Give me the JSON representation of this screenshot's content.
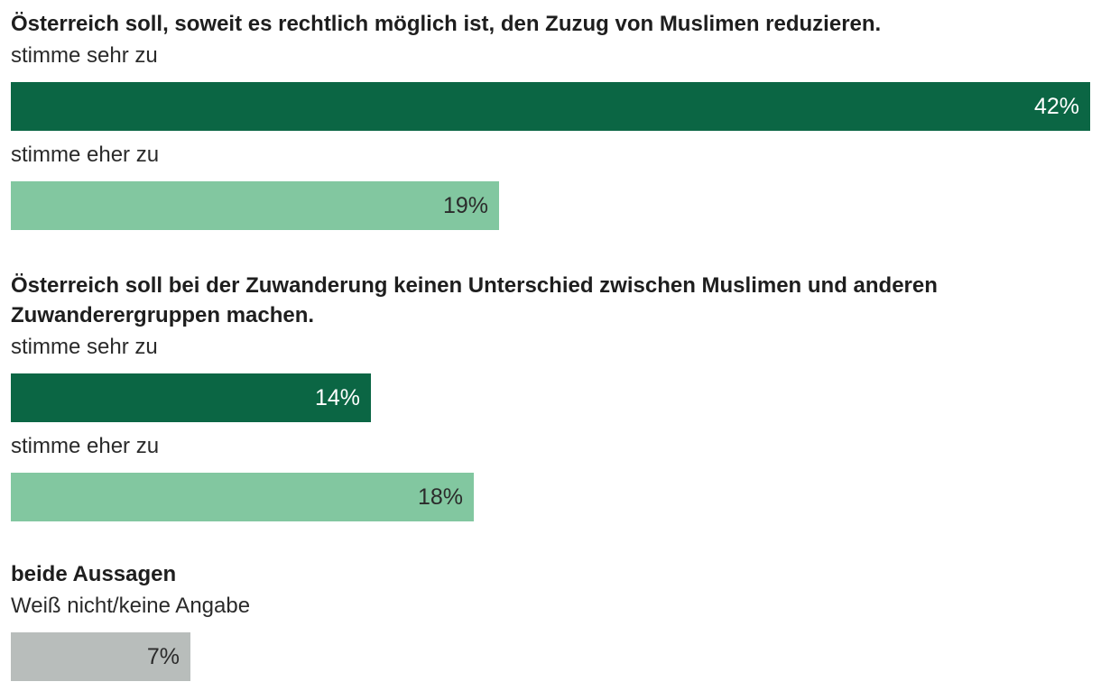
{
  "colors": {
    "stimme sehr zu": "#0b6644",
    "stimme eher zu": "#82c7a0",
    "Weiß nicht/keine Angabe": "#b8bdbb"
  },
  "chart_data": {
    "type": "bar",
    "orientation": "horizontal",
    "xlim": [
      0,
      42
    ],
    "groups": [
      {
        "title": "Österreich soll, soweit es rechtlich möglich ist, den Zuzug von Muslimen reduzieren.",
        "bars": [
          {
            "label": "stimme sehr zu",
            "value": 42,
            "value_label": "42%"
          },
          {
            "label": "stimme eher zu",
            "value": 19,
            "value_label": "19%"
          }
        ]
      },
      {
        "title": "Österreich soll bei der Zuwanderung keinen Unterschied zwischen Muslimen und anderen Zuwanderergruppen machen.",
        "bars": [
          {
            "label": "stimme sehr zu",
            "value": 14,
            "value_label": "14%"
          },
          {
            "label": "stimme eher zu",
            "value": 18,
            "value_label": "18%"
          }
        ]
      },
      {
        "title": "beide Aussagen",
        "bars": [
          {
            "label": "Weiß nicht/keine Angabe",
            "value": 7,
            "value_label": "7%"
          }
        ]
      }
    ]
  }
}
